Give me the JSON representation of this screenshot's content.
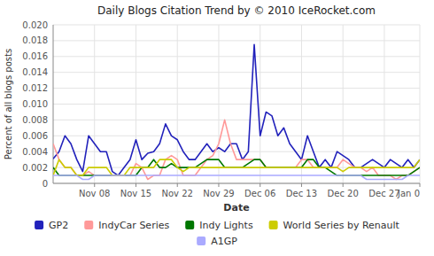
{
  "chart_data": {
    "type": "line",
    "title": "Daily Blogs Citation Trend by © 2010 IceRocket.com",
    "x_label": "Date",
    "y_label": "Percent of all blogs posts",
    "categories": [
      null,
      null,
      null,
      null,
      null,
      null,
      null,
      "Nov 08",
      null,
      null,
      null,
      null,
      null,
      null,
      "Nov 15",
      null,
      null,
      null,
      null,
      null,
      null,
      "Nov 22",
      null,
      null,
      null,
      null,
      null,
      null,
      "Nov 29",
      null,
      null,
      null,
      null,
      null,
      null,
      "Dec 06",
      null,
      null,
      null,
      null,
      null,
      null,
      "Dec 13",
      null,
      null,
      null,
      null,
      null,
      null,
      "Dec 20",
      null,
      null,
      null,
      null,
      null,
      null,
      "Dec 27",
      null,
      null,
      null,
      null,
      null,
      "Jan 0"
    ],
    "ylim": [
      0,
      0.02
    ],
    "yticks": [
      0,
      0.002,
      0.004,
      0.006,
      0.008,
      {
        "value": 0.01,
        "label": "0.010"
      },
      0.012,
      0.014,
      0.016,
      0.018,
      {
        "value": 0.02,
        "label": "0.020"
      }
    ],
    "grid": true,
    "legend": "bottom",
    "series": [
      {
        "name": "GP2",
        "color": "#2222bb",
        "values": [
          0.0031,
          0.004,
          0.006,
          0.005,
          0.003,
          0.0015,
          0.006,
          0.005,
          0.004,
          0.004,
          0.0015,
          0.001,
          0.002,
          0.003,
          0.0055,
          0.003,
          0.0038,
          0.004,
          0.005,
          0.0075,
          0.006,
          0.0055,
          0.004,
          0.003,
          0.003,
          0.004,
          0.005,
          0.004,
          0.0045,
          0.004,
          0.005,
          0.005,
          0.003,
          0.004,
          0.0175,
          0.006,
          0.009,
          0.0085,
          0.006,
          0.007,
          0.005,
          0.004,
          0.003,
          0.006,
          0.004,
          0.002,
          0.003,
          0.002,
          0.004,
          0.0035,
          0.003,
          0.002,
          0.002,
          0.0025,
          0.003,
          0.0025,
          0.002,
          0.003,
          0.0025,
          0.002,
          0.003,
          0.002,
          0.003
        ]
      },
      {
        "name": "IndyCar Series",
        "color": "#ff9999",
        "values": [
          0.005,
          0.003,
          0.002,
          0.002,
          0.001,
          0.001,
          0.0015,
          0.001,
          0.001,
          0.001,
          0.001,
          0.001,
          0.001,
          0.001,
          0.0025,
          0.002,
          0.0005,
          0.001,
          0.001,
          0.003,
          0.0035,
          0.003,
          0.001,
          0.001,
          0.001,
          0.002,
          0.003,
          0.0035,
          0.005,
          0.008,
          0.005,
          0.003,
          0.003,
          0.003,
          0.003,
          0.003,
          0.002,
          0.002,
          0.002,
          0.002,
          0.002,
          0.002,
          0.003,
          0.003,
          0.002,
          0.002,
          0.002,
          0.002,
          0.002,
          0.003,
          0.0025,
          0.002,
          0.002,
          0.0015,
          0.002,
          0.001,
          0.001,
          0.001,
          0.0005,
          0.001,
          0.001,
          0.0015,
          0.002
        ]
      },
      {
        "name": "Indy Lights",
        "color": "#007700",
        "values": [
          0.002,
          0.001,
          0.001,
          0.001,
          0.001,
          0.001,
          0.001,
          0.001,
          0.001,
          0.001,
          0.001,
          0.001,
          0.001,
          0.001,
          0.001,
          0.002,
          0.002,
          0.003,
          0.002,
          0.002,
          0.0025,
          0.002,
          0.002,
          0.002,
          0.002,
          0.0025,
          0.003,
          0.003,
          0.003,
          0.002,
          0.002,
          0.002,
          0.002,
          0.0025,
          0.003,
          0.003,
          0.002,
          0.002,
          0.002,
          0.002,
          0.002,
          0.002,
          0.002,
          0.003,
          0.003,
          0.002,
          0.002,
          0.0015,
          0.001,
          0.001,
          0.001,
          0.001,
          0.001,
          0.001,
          0.001,
          0.001,
          0.001,
          0.001,
          0.001,
          0.001,
          0.001,
          0.0015,
          0.002
        ]
      },
      {
        "name": "World Series by Renault",
        "color": "#cccc00",
        "values": [
          0.001,
          0.003,
          0.002,
          0.002,
          0.001,
          0.001,
          0.002,
          0.002,
          0.002,
          0.002,
          0.001,
          0.001,
          0.001,
          0.002,
          0.002,
          0.002,
          0.002,
          0.002,
          0.003,
          0.003,
          0.003,
          0.002,
          0.0015,
          0.002,
          0.002,
          0.002,
          0.002,
          0.002,
          0.002,
          0.002,
          0.002,
          0.002,
          0.002,
          0.002,
          0.002,
          0.002,
          0.002,
          0.002,
          0.002,
          0.002,
          0.002,
          0.002,
          0.002,
          0.002,
          0.002,
          0.002,
          0.002,
          0.002,
          0.002,
          0.0015,
          0.002,
          0.002,
          0.002,
          0.002,
          0.002,
          0.002,
          0.002,
          0.002,
          0.002,
          0.002,
          0.002,
          0.002,
          0.003
        ]
      },
      {
        "name": "A1GP",
        "color": "#aaaaff",
        "values": [
          0.001,
          0.001,
          0.001,
          0.001,
          0.001,
          0.0005,
          0.0005,
          0.001,
          0.001,
          0.001,
          0.001,
          0.001,
          0.001,
          0.001,
          0.001,
          0.001,
          0.001,
          0.001,
          0.001,
          0.001,
          0.001,
          0.001,
          0.001,
          0.001,
          0.001,
          0.001,
          0.001,
          0.001,
          0.001,
          0.001,
          0.001,
          0.001,
          0.001,
          0.001,
          0.001,
          0.001,
          0.001,
          0.001,
          0.001,
          0.001,
          0.001,
          0.001,
          0.001,
          0.001,
          0.001,
          0.001,
          0.001,
          0.001,
          0.001,
          0.001,
          0.001,
          0.001,
          0.001,
          0.0005,
          0.0005,
          0.0005,
          0.0005,
          0.0005,
          0.0005,
          0.0005,
          0.001,
          0.001,
          0.001
        ]
      }
    ]
  }
}
